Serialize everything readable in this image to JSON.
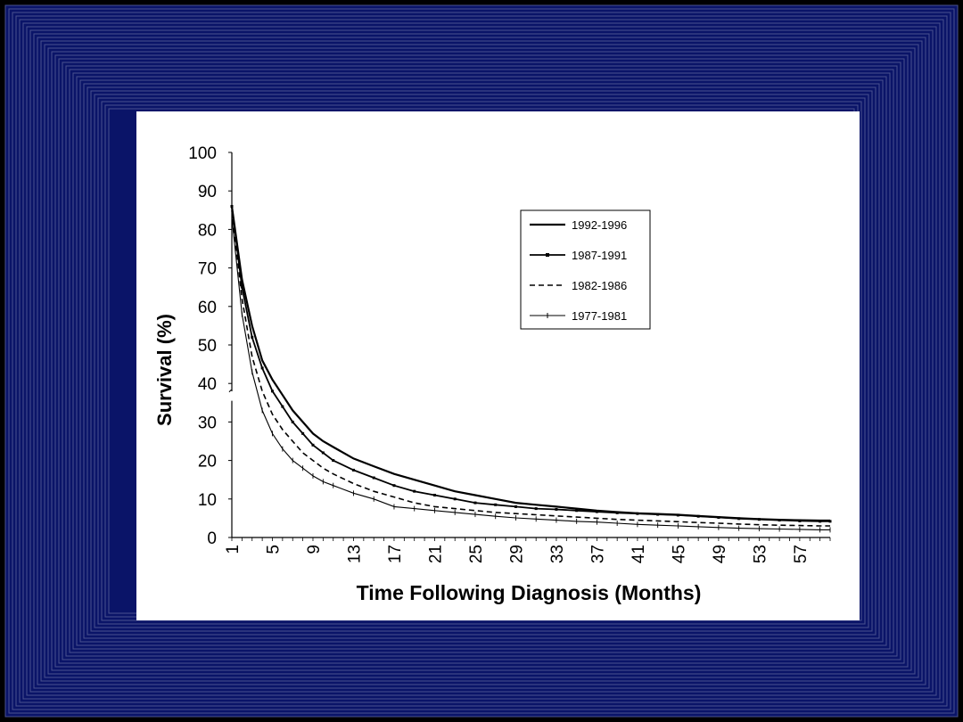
{
  "colors": {
    "frame_outer": "#000000",
    "frame_inner": "#0a1468",
    "frame_line": "#4a5290",
    "card": "#ffffff",
    "ink": "#000000"
  },
  "chart_data": {
    "type": "line",
    "title": "",
    "xlabel": "Time Following Diagnosis (Months)",
    "ylabel": "Survival (%)",
    "xlim": [
      1,
      60
    ],
    "ylim": [
      0,
      100
    ],
    "grid": false,
    "legend_position": "top-right",
    "x_ticks": [
      "1",
      "5",
      "9",
      "13",
      "17",
      "21",
      "25",
      "29",
      "33",
      "37",
      "41",
      "45",
      "49",
      "53",
      "57"
    ],
    "y_ticks": [
      "0",
      "10",
      "20",
      "30",
      "40",
      "50",
      "60",
      "70",
      "80",
      "90",
      "100"
    ],
    "axis_break": "between 30 and 40",
    "x": [
      1,
      2,
      3,
      4,
      5,
      6,
      7,
      8,
      9,
      10,
      11,
      13,
      15,
      17,
      19,
      21,
      23,
      25,
      27,
      29,
      31,
      33,
      35,
      37,
      39,
      41,
      43,
      45,
      47,
      49,
      51,
      53,
      55,
      57,
      59,
      60
    ],
    "series": [
      {
        "name": "1992-1996",
        "style": "solid-thick",
        "values": [
          86,
          67,
          55,
          46,
          41,
          37,
          33,
          30,
          27,
          25,
          23.5,
          20.5,
          18.5,
          16.5,
          15,
          13.5,
          12,
          11,
          10,
          9,
          8.5,
          8,
          7.5,
          7,
          6.6,
          6.3,
          6.1,
          5.9,
          5.6,
          5.3,
          5,
          4.8,
          4.6,
          4.5,
          4.4,
          4.4
        ]
      },
      {
        "name": "1987-1991",
        "style": "solid-marker",
        "values": [
          86,
          65,
          52,
          44,
          38,
          34,
          30,
          27,
          24,
          22,
          20,
          17.5,
          15.5,
          13.5,
          12,
          11,
          10,
          9,
          8.5,
          8,
          7.5,
          7.3,
          7,
          6.7,
          6.4,
          6.2,
          6,
          5.8,
          5.5,
          5.2,
          4.9,
          4.7,
          4.5,
          4.3,
          4.2,
          4.2
        ]
      },
      {
        "name": "1982-1986",
        "style": "dashed",
        "values": [
          85,
          62,
          47,
          38,
          32,
          28,
          25,
          22,
          20,
          18,
          16.5,
          14,
          12,
          10.5,
          9,
          8,
          7.5,
          7,
          6.5,
          6.2,
          5.9,
          5.6,
          5.3,
          5,
          4.7,
          4.5,
          4.3,
          4.1,
          3.9,
          3.7,
          3.5,
          3.3,
          3.2,
          3.1,
          3,
          3
        ]
      },
      {
        "name": "1977-1981",
        "style": "solid-cross",
        "values": [
          83,
          58,
          43,
          33,
          27,
          23,
          20,
          18,
          16,
          14.5,
          13.5,
          11.5,
          10,
          8,
          7.5,
          7,
          6.5,
          6,
          5.5,
          5.1,
          4.8,
          4.5,
          4.2,
          4,
          3.7,
          3.4,
          3.2,
          3,
          2.8,
          2.6,
          2.4,
          2.3,
          2.2,
          2.1,
          2,
          2
        ]
      }
    ]
  }
}
